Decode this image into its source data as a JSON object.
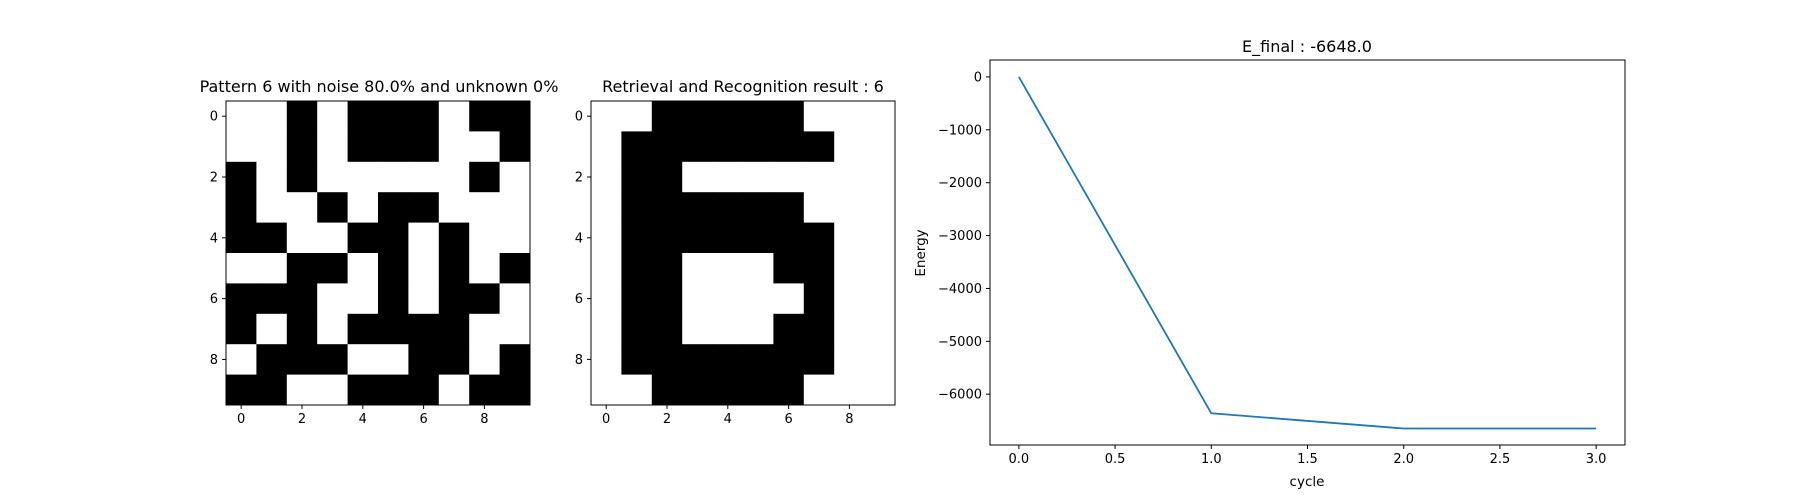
{
  "chart_data": [
    {
      "type": "heatmap",
      "title": "Pattern 6 with noise 80.0% and unknown 0%",
      "xticks": [
        "0",
        "2",
        "4",
        "6",
        "8"
      ],
      "yticks": [
        "0",
        "2",
        "4",
        "6",
        "8"
      ],
      "colormap": {
        "0": "#ffffff",
        "1": "#000000"
      },
      "grid": [
        [
          0,
          0,
          1,
          0,
          1,
          1,
          1,
          0,
          1,
          1
        ],
        [
          0,
          0,
          1,
          0,
          1,
          1,
          1,
          0,
          0,
          1
        ],
        [
          1,
          0,
          1,
          0,
          0,
          0,
          0,
          0,
          1,
          0
        ],
        [
          1,
          0,
          0,
          1,
          0,
          1,
          1,
          0,
          0,
          0
        ],
        [
          1,
          1,
          0,
          0,
          1,
          1,
          0,
          1,
          0,
          0
        ],
        [
          0,
          0,
          1,
          1,
          0,
          1,
          0,
          1,
          0,
          1
        ],
        [
          1,
          1,
          1,
          0,
          0,
          1,
          0,
          1,
          1,
          0
        ],
        [
          1,
          0,
          1,
          0,
          1,
          1,
          1,
          1,
          0,
          0
        ],
        [
          0,
          1,
          1,
          1,
          0,
          0,
          1,
          1,
          0,
          1
        ],
        [
          1,
          1,
          0,
          0,
          1,
          1,
          1,
          0,
          1,
          1
        ]
      ]
    },
    {
      "type": "heatmap",
      "title": "Retrieval and Recognition result : 6",
      "xticks": [
        "0",
        "2",
        "4",
        "6",
        "8"
      ],
      "yticks": [
        "0",
        "2",
        "4",
        "6",
        "8"
      ],
      "colormap": {
        "0": "#ffffff",
        "1": "#000000"
      },
      "grid": [
        [
          0,
          0,
          1,
          1,
          1,
          1,
          1,
          0,
          0,
          0
        ],
        [
          0,
          1,
          1,
          1,
          1,
          1,
          1,
          1,
          0,
          0
        ],
        [
          0,
          1,
          1,
          0,
          0,
          0,
          0,
          0,
          0,
          0
        ],
        [
          0,
          1,
          1,
          1,
          1,
          1,
          1,
          0,
          0,
          0
        ],
        [
          0,
          1,
          1,
          1,
          1,
          1,
          1,
          1,
          0,
          0
        ],
        [
          0,
          1,
          1,
          0,
          0,
          0,
          1,
          1,
          0,
          0
        ],
        [
          0,
          1,
          1,
          0,
          0,
          0,
          0,
          1,
          0,
          0
        ],
        [
          0,
          1,
          1,
          0,
          0,
          0,
          1,
          1,
          0,
          0
        ],
        [
          0,
          1,
          1,
          1,
          1,
          1,
          1,
          1,
          0,
          0
        ],
        [
          0,
          0,
          1,
          1,
          1,
          1,
          1,
          0,
          0,
          0
        ]
      ]
    },
    {
      "type": "line",
      "title": "E_final : -6648.0",
      "xlabel": "cycle",
      "ylabel": "Energy",
      "xlim": [
        -0.15,
        3.15
      ],
      "ylim": [
        -6960,
        320
      ],
      "xticks": [
        0.0,
        0.5,
        1.0,
        1.5,
        2.0,
        2.5,
        3.0
      ],
      "xtick_labels": [
        "0.0",
        "0.5",
        "1.0",
        "1.5",
        "2.0",
        "2.5",
        "3.0"
      ],
      "yticks": [
        0,
        -1000,
        -2000,
        -3000,
        -4000,
        -5000,
        -6000
      ],
      "ytick_labels": [
        "0",
        "−1000",
        "−2000",
        "−3000",
        "−4000",
        "−5000",
        "−6000"
      ],
      "grid": false,
      "line_color": "#1f77b4",
      "series": [
        {
          "x": [
            0,
            1,
            2,
            3
          ],
          "y": [
            0,
            -6360,
            -6648,
            -6648
          ]
        }
      ]
    }
  ]
}
